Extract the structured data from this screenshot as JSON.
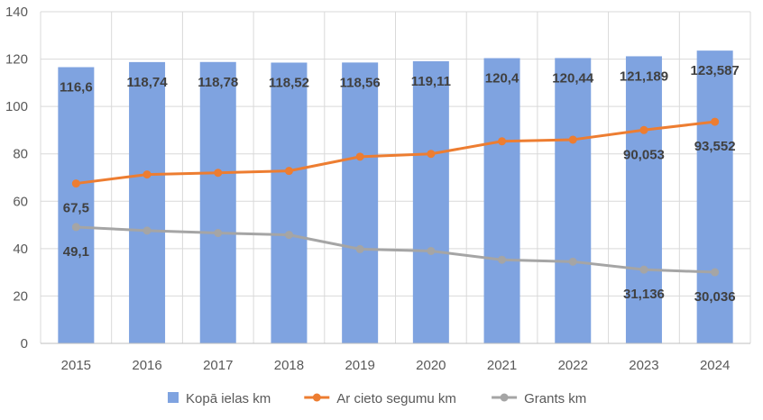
{
  "chart_data": {
    "type": "bar",
    "categories": [
      "2015",
      "2016",
      "2017",
      "2018",
      "2019",
      "2020",
      "2021",
      "2022",
      "2023",
      "2024"
    ],
    "ylim": [
      0,
      140
    ],
    "yticks": [
      0,
      20,
      40,
      60,
      80,
      100,
      120,
      140
    ],
    "grid": true,
    "legend_position": "bottom",
    "series": [
      {
        "name": "Kopā ielas km",
        "kind": "bar",
        "color": "#7fa3e0",
        "values": [
          116.6,
          118.74,
          118.78,
          118.52,
          118.56,
          119.11,
          120.4,
          120.44,
          121.189,
          123.587
        ],
        "labels": [
          "116,6",
          "118,74",
          "118,78",
          "118,52",
          "118,56",
          "119,11",
          "120,4",
          "120,44",
          "121,189",
          "123,587"
        ]
      },
      {
        "name": "Ar cieto segumu km",
        "kind": "line",
        "color": "#ed7d31",
        "values": [
          67.5,
          71.3,
          72.0,
          72.8,
          78.8,
          80.0,
          85.3,
          86.0,
          90.053,
          93.552
        ],
        "labels": [
          "67,5",
          "",
          "",
          "",
          "",
          "",
          "",
          "",
          "90,053",
          "93,552"
        ]
      },
      {
        "name": "Grants km",
        "kind": "line",
        "color": "#a5a5a5",
        "values": [
          49.1,
          47.6,
          46.6,
          45.8,
          39.8,
          39.0,
          35.3,
          34.5,
          31.136,
          30.036
        ],
        "labels": [
          "49,1",
          "",
          "",
          "",
          "",
          "",
          "",
          "",
          "31,136",
          "30,036"
        ]
      }
    ]
  }
}
